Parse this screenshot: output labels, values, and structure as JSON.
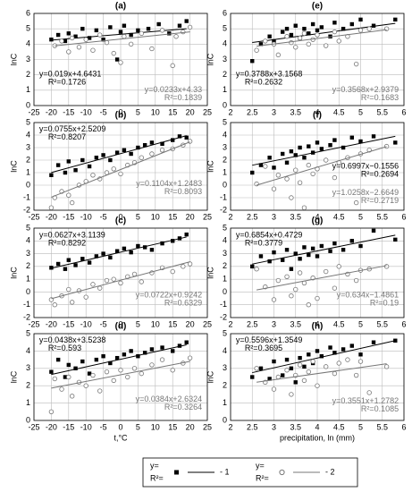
{
  "chart_data": [
    {
      "type": "scatter",
      "title": "(a)",
      "ylabel": "lnC",
      "xlim": [
        -25,
        25
      ],
      "ylim": [
        0,
        6
      ],
      "xticks": [
        -25,
        -20,
        -15,
        -10,
        -5,
        0,
        5,
        10,
        15,
        20,
        25
      ],
      "yticks": [
        0,
        1,
        2,
        3,
        4,
        5,
        6
      ],
      "grid": true,
      "series": [
        {
          "marker": "square",
          "color": "#000000",
          "x": [
            -20,
            -18,
            -16,
            -15,
            -13,
            -11,
            -9,
            -7,
            -5,
            -3,
            -1,
            0,
            1,
            3,
            5,
            8,
            11,
            14,
            17,
            19
          ],
          "values": [
            4.3,
            4.6,
            4.2,
            4.7,
            4.5,
            5.0,
            4.4,
            4.9,
            4.3,
            5.1,
            3.0,
            4.8,
            5.2,
            4.6,
            4.9,
            5.0,
            5.3,
            4.7,
            5.2,
            5.5
          ],
          "fit": {
            "slope": 0.019,
            "intercept": 4.6431,
            "label": "y=0.019x+4.6431"
          },
          "r2_label": "R²=0.1726"
        },
        {
          "marker": "circle",
          "color": "#777777",
          "x": [
            -19,
            -17,
            -15,
            -14,
            -12,
            -10,
            -8,
            -6,
            -4,
            -2,
            0,
            1,
            3,
            6,
            9,
            12,
            15,
            16,
            18,
            20
          ],
          "values": [
            3.9,
            4.2,
            3.5,
            4.4,
            3.8,
            4.3,
            3.6,
            4.6,
            4.1,
            3.4,
            2.8,
            4.5,
            4.0,
            4.7,
            3.7,
            4.9,
            2.6,
            4.5,
            4.8,
            5.1
          ],
          "fit": {
            "slope": 0.0233,
            "intercept": 4.33,
            "label": "y=0.0233x+4.33"
          },
          "r2_label": "R²=0.1839"
        }
      ]
    },
    {
      "type": "scatter",
      "title": "(b)",
      "ylabel": "lnC",
      "xlim": [
        -25,
        25
      ],
      "ylim": [
        -2,
        5
      ],
      "xticks": [
        -25,
        -20,
        -15,
        -10,
        -5,
        0,
        5,
        10,
        15,
        20,
        25
      ],
      "yticks": [
        -2,
        -1,
        0,
        1,
        2,
        3,
        4,
        5
      ],
      "grid": true,
      "series": [
        {
          "marker": "square",
          "color": "#000000",
          "x": [
            -20,
            -18,
            -16,
            -15,
            -13,
            -11,
            -9,
            -7,
            -5,
            -3,
            -1,
            1,
            3,
            5,
            7,
            9,
            12,
            15,
            17,
            19
          ],
          "values": [
            0.8,
            1.6,
            1.0,
            1.9,
            1.2,
            2.0,
            1.5,
            2.2,
            2.4,
            2.0,
            2.6,
            2.8,
            2.5,
            3.0,
            3.2,
            3.4,
            3.3,
            3.6,
            3.9,
            3.8
          ],
          "fit": {
            "slope": 0.0755,
            "intercept": 2.5209,
            "label": "y=0.0755x+2.5209"
          },
          "r2_label": "R²=0.8207"
        },
        {
          "marker": "circle",
          "color": "#777777",
          "x": [
            -20,
            -19,
            -17,
            -15,
            -14,
            -12,
            -10,
            -8,
            -6,
            -4,
            -2,
            0,
            2,
            4,
            6,
            9,
            12,
            15,
            18,
            20
          ],
          "values": [
            -1.8,
            -1.0,
            -0.5,
            -0.8,
            -1.4,
            0.0,
            0.3,
            0.8,
            0.5,
            1.0,
            1.3,
            0.9,
            1.6,
            1.8,
            2.2,
            2.5,
            2.8,
            2.9,
            3.2,
            3.5
          ],
          "fit": {
            "slope": 0.1104,
            "intercept": 1.2483,
            "label": "y=0.1104x+1.2483"
          },
          "r2_label": "R²=0.8093"
        }
      ]
    },
    {
      "type": "scatter",
      "title": "(c)",
      "ylabel": "lnC",
      "xlim": [
        -25,
        25
      ],
      "ylim": [
        -2,
        5
      ],
      "xticks": [
        -25,
        -20,
        -15,
        -10,
        -5,
        0,
        5,
        10,
        15,
        20,
        25
      ],
      "yticks": [
        -2,
        -1,
        0,
        1,
        2,
        3,
        4,
        5
      ],
      "grid": true,
      "series": [
        {
          "marker": "square",
          "color": "#000000",
          "x": [
            -20,
            -18,
            -16,
            -15,
            -13,
            -11,
            -9,
            -7,
            -5,
            -3,
            -1,
            1,
            3,
            5,
            7,
            9,
            12,
            15,
            17,
            19
          ],
          "values": [
            1.9,
            2.2,
            1.8,
            2.5,
            2.1,
            2.6,
            2.3,
            2.8,
            3.0,
            2.7,
            3.2,
            3.4,
            3.1,
            3.6,
            3.5,
            3.3,
            3.8,
            4.0,
            4.2,
            4.5
          ],
          "fit": {
            "slope": 0.0627,
            "intercept": 3.1139,
            "label": "y=0.0627x+3.1139"
          },
          "r2_label": "R²=0.8292"
        },
        {
          "marker": "circle",
          "color": "#777777",
          "x": [
            -20,
            -19,
            -17,
            -15,
            -14,
            -12,
            -10,
            -8,
            -6,
            -4,
            -2,
            0,
            2,
            4,
            6,
            9,
            12,
            15,
            18,
            20
          ],
          "values": [
            -0.6,
            -1.0,
            -0.3,
            0.2,
            -0.8,
            0.1,
            -0.4,
            0.6,
            0.3,
            0.9,
            1.0,
            0.7,
            1.2,
            1.4,
            0.8,
            1.5,
            1.9,
            1.6,
            2.0,
            2.2
          ],
          "fit": {
            "slope": 0.0722,
            "intercept": 0.9242,
            "label": "y=0.0722x+0.9242"
          },
          "r2_label": "R²=0.6329"
        }
      ]
    },
    {
      "type": "scatter",
      "title": "(d)",
      "ylabel": "lnC",
      "xlabel": "t,°C",
      "xlim": [
        -25,
        25
      ],
      "ylim": [
        0,
        5
      ],
      "xticks": [
        -25,
        -20,
        -15,
        -10,
        -5,
        0,
        5,
        10,
        15,
        20,
        25
      ],
      "yticks": [
        0,
        1,
        2,
        3,
        4,
        5
      ],
      "grid": true,
      "series": [
        {
          "marker": "square",
          "color": "#000000",
          "x": [
            -20,
            -18,
            -16,
            -15,
            -13,
            -11,
            -9,
            -7,
            -5,
            -3,
            -1,
            1,
            3,
            5,
            7,
            9,
            12,
            15,
            17,
            19
          ],
          "values": [
            2.8,
            3.5,
            2.5,
            3.2,
            3.0,
            3.4,
            2.7,
            3.5,
            3.7,
            3.3,
            3.6,
            3.8,
            4.0,
            3.7,
            3.9,
            4.1,
            4.2,
            4.0,
            4.3,
            4.5
          ],
          "fit": {
            "slope": 0.0438,
            "intercept": 3.5238,
            "label": "y=0.0438x+3.5238"
          },
          "r2_label": "R²=0.593"
        },
        {
          "marker": "circle",
          "color": "#777777",
          "x": [
            -20,
            -19,
            -17,
            -15,
            -14,
            -12,
            -10,
            -8,
            -6,
            -4,
            -2,
            0,
            2,
            4,
            6,
            9,
            12,
            15,
            18,
            20
          ],
          "values": [
            0.5,
            2.4,
            1.8,
            2.5,
            1.4,
            2.2,
            2.0,
            2.6,
            1.7,
            2.8,
            2.3,
            2.9,
            2.5,
            3.0,
            2.7,
            3.2,
            3.5,
            2.9,
            3.3,
            3.6
          ],
          "fit": {
            "slope": 0.0384,
            "intercept": 2.6324,
            "label": "y=0.0384x+2.6324"
          },
          "r2_label": "R²=0.3264"
        }
      ]
    },
    {
      "type": "scatter",
      "title": "(e)",
      "ylabel": "lnC",
      "xlim": [
        2,
        6
      ],
      "ylim": [
        0,
        6
      ],
      "xticks": [
        2,
        2.5,
        3,
        3.5,
        4,
        4.5,
        5,
        5.5,
        6
      ],
      "yticks": [
        0,
        1,
        2,
        3,
        4,
        5,
        6
      ],
      "grid": true,
      "series": [
        {
          "marker": "square",
          "color": "#000000",
          "x": [
            2.5,
            2.7,
            2.9,
            3.0,
            3.2,
            3.3,
            3.4,
            3.5,
            3.6,
            3.7,
            3.8,
            3.9,
            4.0,
            4.1,
            4.3,
            4.4,
            4.6,
            4.8,
            5.0,
            5.3,
            5.8
          ],
          "values": [
            2.9,
            4.0,
            4.5,
            4.2,
            4.8,
            5.0,
            4.6,
            5.2,
            4.4,
            5.0,
            4.7,
            5.3,
            4.9,
            5.1,
            4.5,
            5.4,
            5.0,
            5.3,
            5.6,
            5.2,
            5.6
          ],
          "fit": {
            "slope": 0.3788,
            "intercept": 3.1568,
            "label": "y=0.3788x+3.1568"
          },
          "r2_label": "R²=0.2632"
        },
        {
          "marker": "circle",
          "color": "#777777",
          "x": [
            2.6,
            2.8,
            3.0,
            3.1,
            3.3,
            3.4,
            3.5,
            3.6,
            3.7,
            3.8,
            3.9,
            4.0,
            4.2,
            4.4,
            4.5,
            4.7,
            4.9,
            5.0,
            5.2,
            5.6
          ],
          "values": [
            3.6,
            4.2,
            4.0,
            3.3,
            4.5,
            4.1,
            3.8,
            4.4,
            4.7,
            4.0,
            4.3,
            4.6,
            3.9,
            4.8,
            4.2,
            4.5,
            2.7,
            4.9,
            5.0,
            5.0
          ],
          "fit": {
            "slope": 0.3568,
            "intercept": 2.9379,
            "label": "y=0.3568x+2.9379"
          },
          "r2_label": "R²=0.1683"
        }
      ]
    },
    {
      "type": "scatter",
      "title": "(f)",
      "ylabel": "lnC",
      "xlim": [
        2,
        6
      ],
      "ylim": [
        -2,
        5
      ],
      "xticks": [
        2,
        2.5,
        3,
        3.5,
        4,
        4.5,
        5,
        5.5,
        6
      ],
      "yticks": [
        -2,
        -1,
        0,
        1,
        2,
        3,
        4,
        5
      ],
      "grid": true,
      "series": [
        {
          "marker": "square",
          "color": "#000000",
          "x": [
            2.5,
            2.7,
            2.9,
            3.0,
            3.2,
            3.3,
            3.4,
            3.5,
            3.6,
            3.7,
            3.8,
            3.9,
            4.0,
            4.1,
            4.3,
            4.4,
            4.6,
            4.8,
            5.0,
            5.3,
            5.8
          ],
          "values": [
            1.0,
            1.6,
            2.2,
            1.4,
            2.5,
            1.8,
            2.7,
            2.4,
            3.0,
            2.2,
            3.1,
            2.6,
            3.4,
            2.9,
            3.2,
            3.6,
            3.0,
            3.8,
            3.5,
            3.9,
            3.4
          ],
          "fit": {
            "slope": 0.6997,
            "intercept": -0.1556,
            "label": "y=0.6997x−0.1556"
          },
          "r2_label": "R²=0.2694"
        },
        {
          "marker": "circle",
          "color": "#777777",
          "x": [
            2.6,
            2.8,
            3.0,
            3.1,
            3.3,
            3.4,
            3.5,
            3.6,
            3.7,
            3.8,
            3.9,
            4.0,
            4.2,
            4.4,
            4.5,
            4.7,
            4.9,
            5.0,
            5.2,
            5.6
          ],
          "values": [
            0.1,
            1.5,
            -0.3,
            0.8,
            0.5,
            -1.0,
            1.2,
            0.2,
            -1.8,
            1.6,
            0.9,
            1.3,
            2.0,
            0.6,
            1.8,
            2.2,
            -1.4,
            2.5,
            2.8,
            3.1
          ],
          "fit": {
            "slope": 1.0258,
            "intercept": -2.6649,
            "label": "y=1.0258x−2.6649"
          },
          "r2_label": "R²=0.2719"
        }
      ]
    },
    {
      "type": "scatter",
      "title": "(g)",
      "ylabel": "lnC",
      "xlim": [
        2,
        6
      ],
      "ylim": [
        -2,
        5
      ],
      "xticks": [
        2,
        2.5,
        3,
        3.5,
        4,
        4.5,
        5,
        5.5,
        6
      ],
      "yticks": [
        -2,
        -1,
        0,
        1,
        2,
        3,
        4,
        5
      ],
      "grid": true,
      "series": [
        {
          "marker": "square",
          "color": "#000000",
          "x": [
            2.5,
            2.7,
            2.9,
            3.0,
            3.2,
            3.3,
            3.4,
            3.5,
            3.6,
            3.7,
            3.8,
            3.9,
            4.0,
            4.1,
            4.3,
            4.4,
            4.6,
            4.8,
            5.0,
            5.3,
            5.8
          ],
          "values": [
            2.0,
            2.8,
            2.4,
            3.1,
            2.5,
            3.3,
            1.8,
            3.0,
            2.6,
            3.5,
            2.9,
            3.4,
            2.8,
            3.6,
            3.2,
            3.8,
            3.3,
            4.0,
            3.6,
            4.8,
            4.1
          ],
          "fit": {
            "slope": 0.6854,
            "intercept": 0.4729,
            "label": "y=0.6854x+0.4729"
          },
          "r2_label": "R²=0.3779"
        },
        {
          "marker": "circle",
          "color": "#777777",
          "x": [
            2.6,
            2.8,
            3.0,
            3.1,
            3.3,
            3.4,
            3.5,
            3.6,
            3.7,
            3.8,
            3.9,
            4.0,
            4.2,
            4.4,
            4.5,
            4.7,
            4.9,
            5.0,
            5.2,
            5.6
          ],
          "values": [
            1.8,
            0.4,
            -0.6,
            0.9,
            1.2,
            -0.3,
            0.2,
            1.5,
            0.7,
            -1.0,
            1.1,
            -0.5,
            1.6,
            0.3,
            2.0,
            1.4,
            0.9,
            1.7,
            1.8,
            2.0
          ],
          "fit": {
            "slope": 0.634,
            "intercept": -1.4861,
            "label": "y=0.634x−1.4861"
          },
          "r2_label": "R²=0.19"
        }
      ]
    },
    {
      "type": "scatter",
      "title": "(h)",
      "ylabel": "lnC",
      "xlabel": "precipitation, ln (mm)",
      "xlim": [
        2,
        6
      ],
      "ylim": [
        0,
        5
      ],
      "xticks": [
        2,
        2.5,
        3,
        3.5,
        4,
        4.5,
        5,
        5.5,
        6
      ],
      "yticks": [
        0,
        1,
        2,
        3,
        4,
        5
      ],
      "grid": true,
      "series": [
        {
          "marker": "square",
          "color": "#000000",
          "x": [
            2.5,
            2.7,
            2.9,
            3.0,
            3.2,
            3.3,
            3.4,
            3.5,
            3.6,
            3.7,
            3.8,
            3.9,
            4.0,
            4.1,
            4.3,
            4.4,
            4.6,
            4.8,
            5.0,
            5.3,
            5.8
          ],
          "values": [
            2.5,
            3.0,
            2.4,
            3.4,
            2.6,
            3.5,
            3.0,
            2.2,
            3.6,
            3.1,
            3.8,
            3.3,
            4.0,
            3.7,
            4.2,
            3.9,
            4.1,
            4.3,
            3.8,
            4.5,
            4.6
          ],
          "fit": {
            "slope": 0.5596,
            "intercept": 1.3549,
            "label": "y=0.5596x+1.3549"
          },
          "r2_label": "R²=0.3695"
        },
        {
          "marker": "circle",
          "color": "#777777",
          "x": [
            2.6,
            2.8,
            3.0,
            3.1,
            3.3,
            3.4,
            3.5,
            3.6,
            3.7,
            3.8,
            3.9,
            4.0,
            4.2,
            4.4,
            4.5,
            4.7,
            4.9,
            5.0,
            5.2,
            5.6
          ],
          "values": [
            3.0,
            2.2,
            1.8,
            2.5,
            2.9,
            1.5,
            2.6,
            3.2,
            2.3,
            2.8,
            3.4,
            2.0,
            3.1,
            2.7,
            3.3,
            3.5,
            2.6,
            3.4,
            1.6,
            3.1
          ],
          "fit": {
            "slope": 0.3551,
            "intercept": 1.2782,
            "label": "y=0.3551x+1.2782"
          },
          "r2_label": "R²=0.1085"
        }
      ]
    }
  ],
  "legend": {
    "items": [
      {
        "eq": "y=",
        "r2": "R²=",
        "label": "- 1"
      },
      {
        "eq": "y=",
        "r2": "R²=",
        "label": "- 2"
      }
    ]
  }
}
